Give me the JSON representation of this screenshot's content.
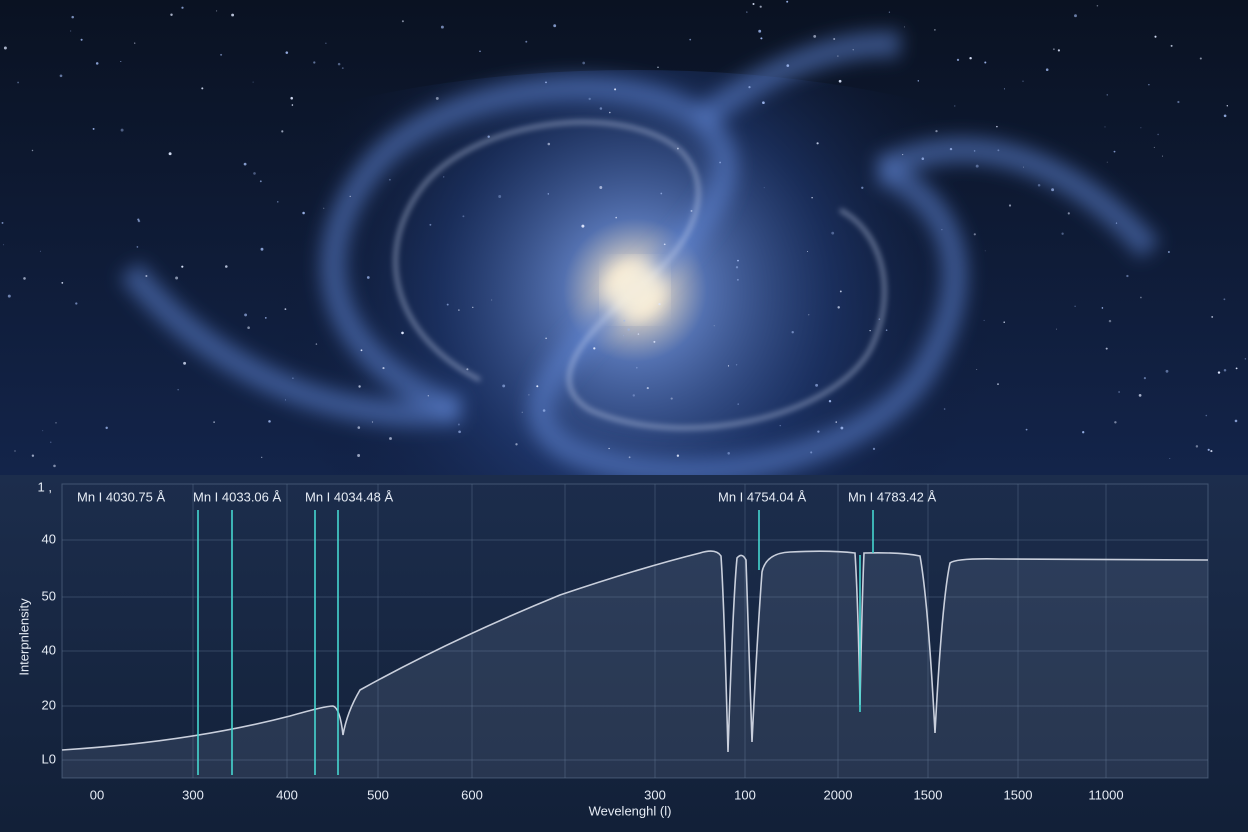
{
  "annotations": [
    "Mn I 4030.75 Å",
    "Mn I 4033.06 Å",
    "Mn I 4034.48 Å",
    "Mn I 4754.04 Å",
    "Mn I 4783.42 Å"
  ],
  "y_axis": {
    "title": "Interpnlensity",
    "ticks": [
      "1 ,",
      "40",
      "50",
      "40",
      "20",
      "L0"
    ]
  },
  "x_axis": {
    "title": "Wevelenghl (l)",
    "ticks": [
      "00",
      "300",
      "400",
      "500",
      "600",
      "300",
      "100",
      "2000",
      "1500",
      "1500",
      "11000"
    ]
  }
}
